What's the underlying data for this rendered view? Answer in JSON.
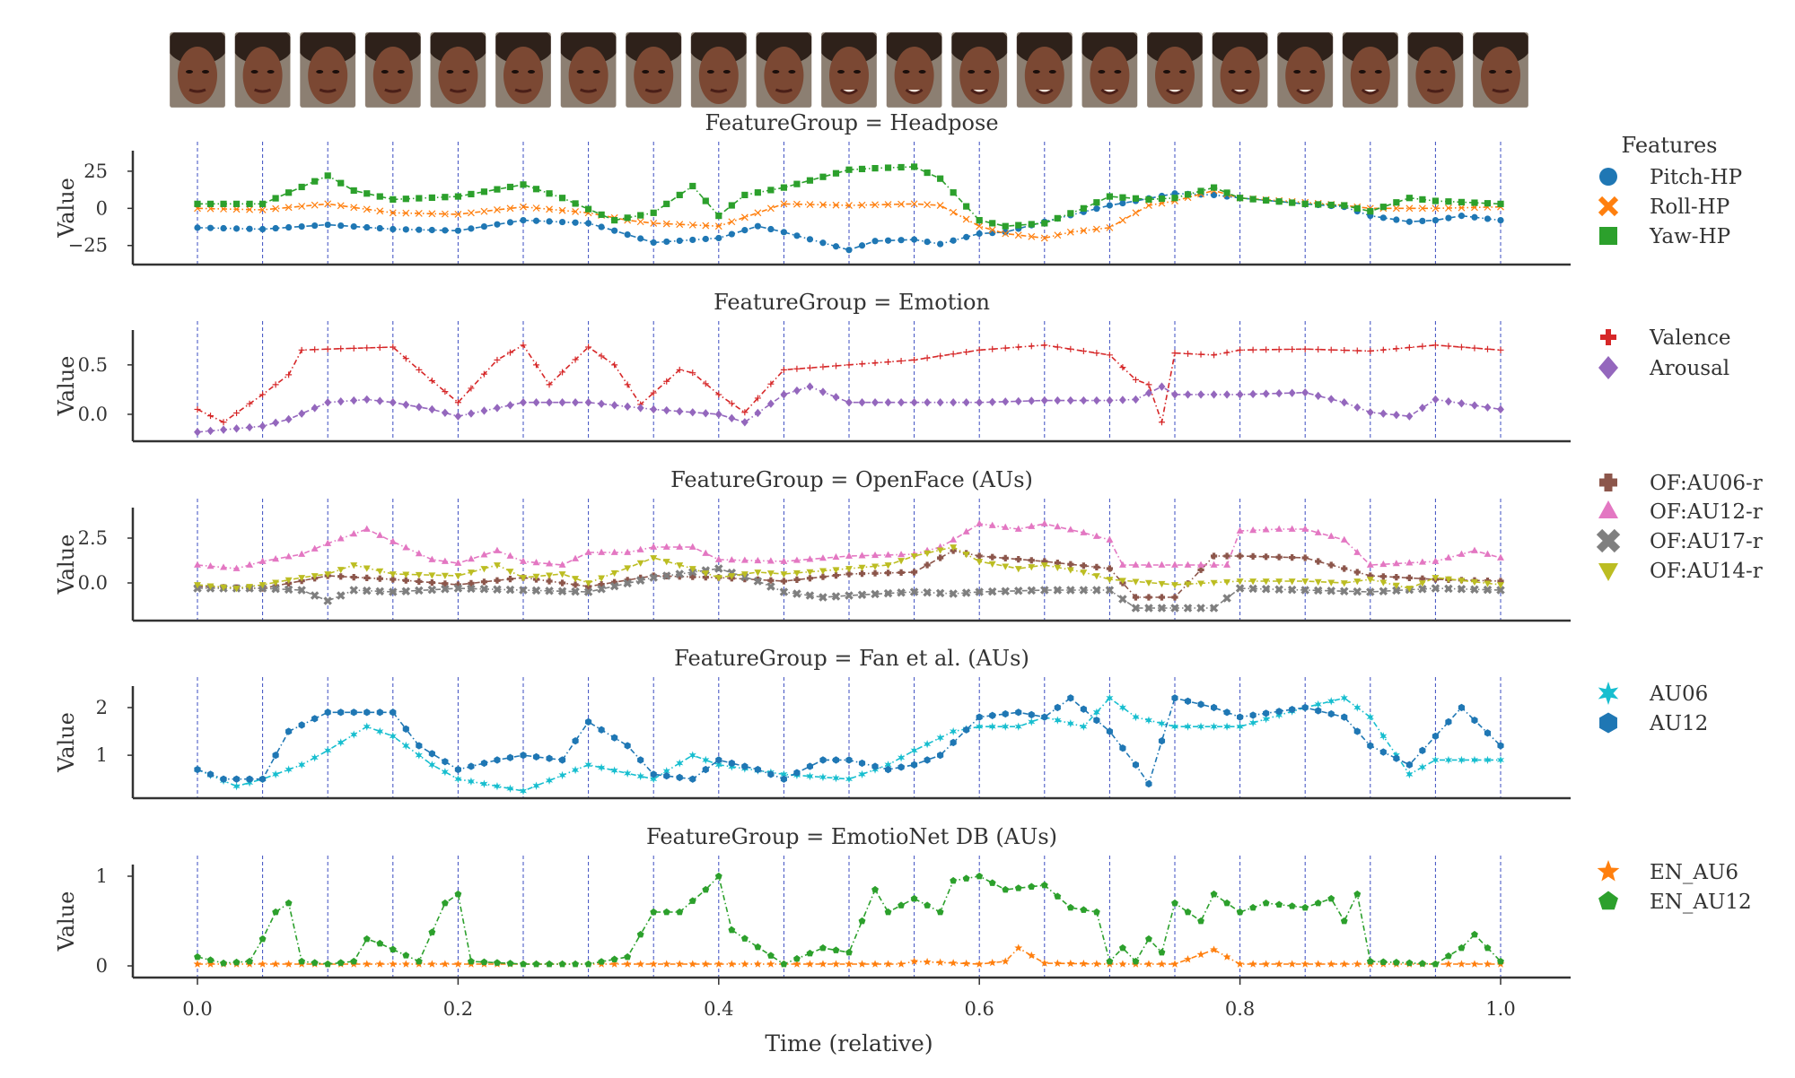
{
  "frame_strip": {
    "count": 21
  },
  "x_axis": {
    "label": "Time (relative)",
    "ticks": [
      "0.0",
      "0.2",
      "0.4",
      "0.6",
      "0.8",
      "1.0"
    ],
    "tick_values": [
      0.0,
      0.2,
      0.4,
      0.6,
      0.8,
      1.0
    ]
  },
  "y_label": "Value",
  "legend_title": "Features",
  "chart_data": [
    {
      "type": "scatter",
      "title": "FeatureGroup = Headpose",
      "ylabel": "Value",
      "ylim": [
        -33,
        34
      ],
      "yticks": [
        25,
        0,
        -25
      ],
      "ytick_labels": [
        "25",
        "0",
        "−25"
      ],
      "series": [
        {
          "name": "Pitch-HP",
          "color": "#1f77b4",
          "marker": "circle",
          "x": [
            0,
            0.05,
            0.1,
            0.15,
            0.2,
            0.25,
            0.3,
            0.32,
            0.35,
            0.4,
            0.43,
            0.45,
            0.5,
            0.52,
            0.55,
            0.57,
            0.6,
            0.62,
            0.65,
            0.7,
            0.72,
            0.75,
            0.78,
            0.8,
            0.85,
            0.88,
            0.9,
            0.93,
            0.95,
            0.97,
            1.0
          ],
          "y": [
            -13,
            -14,
            -11,
            -14,
            -15,
            -8,
            -10,
            -15,
            -23,
            -20,
            -12,
            -16,
            -28,
            -22,
            -21,
            -24,
            -17,
            -16,
            -9,
            2,
            5,
            10,
            9,
            7,
            3,
            1,
            -5,
            -9,
            -8,
            -5,
            -8
          ]
        },
        {
          "name": "Roll-HP",
          "color": "#ff7f0e",
          "marker": "x",
          "x": [
            0,
            0.05,
            0.1,
            0.15,
            0.2,
            0.25,
            0.3,
            0.33,
            0.35,
            0.4,
            0.45,
            0.5,
            0.55,
            0.57,
            0.6,
            0.62,
            0.65,
            0.67,
            0.7,
            0.73,
            0.75,
            0.78,
            0.8,
            0.85,
            0.88,
            0.9,
            0.95,
            1.0
          ],
          "y": [
            0,
            -1,
            3,
            -3,
            -4,
            1,
            -3,
            -8,
            -10,
            -12,
            3,
            2,
            3,
            2,
            -12,
            -17,
            -20,
            -16,
            -13,
            2,
            5,
            12,
            7,
            4,
            2,
            0,
            0,
            1
          ]
        },
        {
          "name": "Yaw-HP",
          "color": "#2ca02c",
          "marker": "square",
          "x": [
            0,
            0.05,
            0.1,
            0.12,
            0.15,
            0.2,
            0.25,
            0.28,
            0.32,
            0.35,
            0.38,
            0.4,
            0.42,
            0.45,
            0.5,
            0.52,
            0.55,
            0.57,
            0.6,
            0.62,
            0.65,
            0.68,
            0.7,
            0.73,
            0.75,
            0.78,
            0.8,
            0.85,
            0.88,
            0.9,
            0.93,
            0.95,
            1.0
          ],
          "y": [
            3,
            3,
            22,
            12,
            6,
            8,
            16,
            7,
            -8,
            -3,
            15,
            -5,
            9,
            14,
            26,
            27,
            28,
            20,
            -8,
            -12,
            -10,
            0,
            8,
            6,
            7,
            14,
            7,
            3,
            2,
            -2,
            7,
            5,
            3
          ]
        }
      ]
    },
    {
      "type": "scatter",
      "title": "FeatureGroup = Emotion",
      "ylabel": "Value",
      "ylim": [
        -0.2,
        0.78
      ],
      "yticks": [
        0.5,
        0.0
      ],
      "ytick_labels": [
        "0.5",
        "0.0"
      ],
      "series": [
        {
          "name": "Valence",
          "color": "#d62728",
          "marker": "plus",
          "x": [
            0,
            0.02,
            0.05,
            0.07,
            0.08,
            0.1,
            0.15,
            0.17,
            0.2,
            0.23,
            0.25,
            0.27,
            0.3,
            0.32,
            0.34,
            0.37,
            0.38,
            0.4,
            0.42,
            0.45,
            0.5,
            0.55,
            0.6,
            0.65,
            0.7,
            0.72,
            0.73,
            0.74,
            0.75,
            0.78,
            0.8,
            0.85,
            0.9,
            0.95,
            1.0
          ],
          "y": [
            0.05,
            -0.08,
            0.2,
            0.4,
            0.65,
            0.66,
            0.68,
            0.45,
            0.12,
            0.55,
            0.7,
            0.3,
            0.68,
            0.5,
            0.1,
            0.45,
            0.42,
            0.2,
            0.02,
            0.45,
            0.5,
            0.55,
            0.65,
            0.7,
            0.6,
            0.35,
            0.3,
            -0.08,
            0.62,
            0.6,
            0.65,
            0.66,
            0.64,
            0.7,
            0.65
          ]
        },
        {
          "name": "Arousal",
          "color": "#9467bd",
          "marker": "diamond",
          "x": [
            0,
            0.05,
            0.07,
            0.1,
            0.13,
            0.15,
            0.18,
            0.2,
            0.25,
            0.3,
            0.35,
            0.4,
            0.42,
            0.45,
            0.47,
            0.5,
            0.55,
            0.6,
            0.65,
            0.7,
            0.72,
            0.74,
            0.75,
            0.8,
            0.85,
            0.88,
            0.9,
            0.93,
            0.95,
            1.0
          ],
          "y": [
            -0.18,
            -0.12,
            -0.05,
            0.12,
            0.15,
            0.12,
            0.05,
            -0.02,
            0.12,
            0.12,
            0.05,
            0.0,
            -0.08,
            0.2,
            0.28,
            0.12,
            0.12,
            0.12,
            0.14,
            0.14,
            0.15,
            0.28,
            0.2,
            0.2,
            0.22,
            0.12,
            0.02,
            -0.02,
            0.15,
            0.05
          ]
        }
      ]
    },
    {
      "type": "scatter",
      "title": "FeatureGroup = OpenFace (AUs)",
      "ylabel": "Value",
      "ylim": [
        -1.7,
        3.8
      ],
      "yticks": [
        2.5,
        0.0
      ],
      "ytick_labels": [
        "2.5",
        "0.0"
      ],
      "series": [
        {
          "name": "OF:AU06-r",
          "color": "#8c564b",
          "marker": "plus-bold",
          "x": [
            0,
            0.05,
            0.1,
            0.15,
            0.2,
            0.25,
            0.3,
            0.35,
            0.4,
            0.45,
            0.5,
            0.55,
            0.58,
            0.6,
            0.65,
            0.7,
            0.72,
            0.75,
            0.78,
            0.8,
            0.85,
            0.9,
            0.95,
            1.0
          ],
          "y": [
            -0.2,
            -0.3,
            0.4,
            0.2,
            -0.1,
            0.3,
            -0.2,
            0.4,
            0.3,
            0.1,
            0.5,
            0.6,
            1.8,
            1.5,
            1.2,
            0.8,
            -0.8,
            -0.8,
            1.5,
            1.5,
            1.4,
            0.4,
            0.2,
            0.1
          ]
        },
        {
          "name": "OF:AU12-r",
          "color": "#e377c2",
          "marker": "triangle-up",
          "x": [
            0,
            0.03,
            0.05,
            0.08,
            0.1,
            0.13,
            0.15,
            0.18,
            0.2,
            0.23,
            0.25,
            0.28,
            0.3,
            0.33,
            0.35,
            0.38,
            0.4,
            0.45,
            0.5,
            0.55,
            0.57,
            0.58,
            0.6,
            0.63,
            0.65,
            0.68,
            0.7,
            0.71,
            0.72,
            0.75,
            0.78,
            0.79,
            0.8,
            0.83,
            0.85,
            0.88,
            0.9,
            0.95,
            0.98,
            1.0
          ],
          "y": [
            1.0,
            0.8,
            1.2,
            1.6,
            2.2,
            3.0,
            2.3,
            1.3,
            1.1,
            1.8,
            1.2,
            1.0,
            1.7,
            1.7,
            2.0,
            2.0,
            1.3,
            1.2,
            1.5,
            1.6,
            2.0,
            2.4,
            3.3,
            3.0,
            3.3,
            2.8,
            2.4,
            1.0,
            1.0,
            1.0,
            1.0,
            1.0,
            2.9,
            3.0,
            3.0,
            2.4,
            1.0,
            1.2,
            1.8,
            1.4
          ]
        },
        {
          "name": "OF:AU17-r",
          "color": "#7f7f7f",
          "marker": "x-bold",
          "x": [
            0,
            0.05,
            0.08,
            0.1,
            0.12,
            0.15,
            0.2,
            0.25,
            0.3,
            0.35,
            0.38,
            0.4,
            0.43,
            0.45,
            0.48,
            0.5,
            0.55,
            0.58,
            0.6,
            0.65,
            0.7,
            0.72,
            0.75,
            0.78,
            0.8,
            0.85,
            0.9,
            0.95,
            1.0
          ],
          "y": [
            -0.3,
            -0.3,
            -0.4,
            -1.0,
            -0.4,
            -0.5,
            -0.3,
            -0.4,
            -0.5,
            0.3,
            0.6,
            0.8,
            0.1,
            -0.5,
            -0.8,
            -0.7,
            -0.5,
            -0.6,
            -0.5,
            -0.4,
            -0.4,
            -1.4,
            -1.4,
            -1.4,
            -0.3,
            -0.4,
            -0.5,
            -0.3,
            -0.4
          ]
        },
        {
          "name": "OF:AU14-r",
          "color": "#bcbd22",
          "marker": "triangle-down",
          "x": [
            0,
            0.03,
            0.05,
            0.08,
            0.1,
            0.12,
            0.15,
            0.2,
            0.23,
            0.25,
            0.28,
            0.3,
            0.35,
            0.38,
            0.4,
            0.43,
            0.45,
            0.5,
            0.53,
            0.55,
            0.58,
            0.6,
            0.63,
            0.65,
            0.68,
            0.7,
            0.75,
            0.8,
            0.85,
            0.88,
            0.9,
            0.93,
            0.95,
            1.0
          ],
          "y": [
            -0.1,
            -0.3,
            -0.1,
            0.3,
            0.5,
            1.0,
            0.5,
            0.4,
            1.0,
            0.3,
            0.5,
            0.0,
            1.4,
            0.8,
            0.3,
            0.6,
            0.5,
            0.8,
            1.0,
            1.5,
            2.0,
            1.2,
            0.8,
            1.0,
            0.6,
            0.2,
            -0.1,
            0.1,
            0.1,
            0.0,
            0.2,
            -0.3,
            0.3,
            -0.1
          ]
        }
      ]
    },
    {
      "type": "scatter",
      "title": "FeatureGroup = Fan et al. (AUs)",
      "ylabel": "Value",
      "ylim": [
        0.25,
        2.3
      ],
      "yticks": [
        2,
        1
      ],
      "ytick_labels": [
        "2",
        "1"
      ],
      "series": [
        {
          "name": "AU06",
          "color": "#17becf",
          "marker": "star6",
          "x": [
            0,
            0.03,
            0.05,
            0.08,
            0.1,
            0.13,
            0.15,
            0.18,
            0.2,
            0.25,
            0.3,
            0.35,
            0.38,
            0.4,
            0.45,
            0.5,
            0.53,
            0.55,
            0.58,
            0.6,
            0.63,
            0.65,
            0.68,
            0.7,
            0.72,
            0.75,
            0.8,
            0.85,
            0.88,
            0.9,
            0.93,
            0.95,
            1.0
          ],
          "y": [
            0.7,
            0.35,
            0.5,
            0.8,
            1.1,
            1.6,
            1.4,
            0.8,
            0.5,
            0.25,
            0.8,
            0.5,
            1.0,
            0.8,
            0.6,
            0.5,
            0.8,
            1.1,
            1.5,
            1.6,
            1.6,
            1.8,
            1.6,
            2.2,
            1.8,
            1.6,
            1.6,
            2.0,
            2.2,
            1.8,
            0.6,
            0.9,
            0.9
          ]
        },
        {
          "name": "AU12",
          "color": "#1f77b4",
          "marker": "hexagon",
          "x": [
            0,
            0.02,
            0.05,
            0.07,
            0.1,
            0.15,
            0.17,
            0.2,
            0.23,
            0.25,
            0.28,
            0.3,
            0.33,
            0.35,
            0.38,
            0.4,
            0.43,
            0.45,
            0.48,
            0.5,
            0.53,
            0.55,
            0.57,
            0.6,
            0.63,
            0.65,
            0.67,
            0.7,
            0.72,
            0.73,
            0.75,
            0.78,
            0.8,
            0.85,
            0.88,
            0.9,
            0.93,
            0.95,
            0.97,
            1.0
          ],
          "y": [
            0.7,
            0.5,
            0.5,
            1.5,
            1.9,
            1.9,
            1.2,
            0.7,
            0.9,
            1.0,
            0.9,
            1.7,
            1.2,
            0.6,
            0.5,
            0.9,
            0.7,
            0.5,
            0.9,
            0.9,
            0.7,
            0.8,
            1.0,
            1.8,
            1.9,
            1.8,
            2.2,
            1.5,
            0.8,
            0.4,
            2.2,
            2.0,
            1.8,
            2.0,
            1.8,
            1.2,
            0.8,
            1.4,
            2.0,
            1.2
          ]
        }
      ]
    },
    {
      "type": "scatter",
      "title": "FeatureGroup = EmotioNet DB (AUs)",
      "ylabel": "Value",
      "ylim": [
        -0.05,
        1.05
      ],
      "yticks": [
        1,
        0
      ],
      "ytick_labels": [
        "1",
        "0"
      ],
      "series": [
        {
          "name": "EN_AU6",
          "color": "#ff7f0e",
          "marker": "star5",
          "x": [
            0,
            0.1,
            0.2,
            0.3,
            0.4,
            0.5,
            0.54,
            0.55,
            0.6,
            0.62,
            0.63,
            0.65,
            0.7,
            0.75,
            0.78,
            0.8,
            0.85,
            0.9,
            0.95,
            1.0
          ],
          "y": [
            0.02,
            0.02,
            0.02,
            0.02,
            0.02,
            0.02,
            0.02,
            0.05,
            0.02,
            0.05,
            0.2,
            0.03,
            0.02,
            0.02,
            0.18,
            0.02,
            0.02,
            0.02,
            0.02,
            0.02
          ]
        },
        {
          "name": "EN_AU12",
          "color": "#2ca02c",
          "marker": "pentagon",
          "x": [
            0,
            0.02,
            0.04,
            0.05,
            0.06,
            0.07,
            0.08,
            0.1,
            0.12,
            0.13,
            0.14,
            0.17,
            0.19,
            0.2,
            0.21,
            0.25,
            0.3,
            0.33,
            0.35,
            0.37,
            0.39,
            0.4,
            0.41,
            0.45,
            0.48,
            0.5,
            0.52,
            0.53,
            0.55,
            0.57,
            0.58,
            0.6,
            0.62,
            0.65,
            0.67,
            0.69,
            0.7,
            0.71,
            0.72,
            0.73,
            0.74,
            0.75,
            0.77,
            0.78,
            0.8,
            0.82,
            0.85,
            0.87,
            0.88,
            0.89,
            0.9,
            0.95,
            0.97,
            0.98,
            1.0
          ],
          "y": [
            0.1,
            0.03,
            0.05,
            0.3,
            0.6,
            0.7,
            0.05,
            0.02,
            0.05,
            0.3,
            0.25,
            0.05,
            0.7,
            0.8,
            0.05,
            0.02,
            0.02,
            0.1,
            0.6,
            0.6,
            0.85,
            1.0,
            0.4,
            0.02,
            0.2,
            0.15,
            0.85,
            0.6,
            0.75,
            0.6,
            0.95,
            1.0,
            0.85,
            0.9,
            0.65,
            0.6,
            0.05,
            0.2,
            0.05,
            0.3,
            0.15,
            0.7,
            0.5,
            0.8,
            0.6,
            0.7,
            0.65,
            0.75,
            0.5,
            0.8,
            0.05,
            0.02,
            0.2,
            0.35,
            0.05
          ]
        }
      ]
    }
  ]
}
